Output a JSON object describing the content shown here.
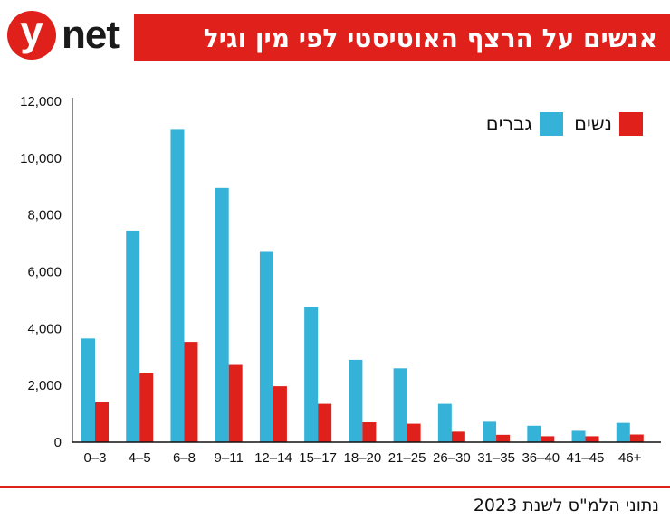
{
  "brand": {
    "logo_letter": "y",
    "logo_text": "net",
    "accent_color": "#e0201b"
  },
  "header": {
    "title": "אנשים על הרצף האוטיסטי לפי מין וגיל"
  },
  "footer": {
    "source": "נתוני הלמ\"ס לשנת 2023"
  },
  "chart_data": {
    "type": "bar",
    "title": "אנשים על הרצף האוטיסטי לפי מין וגיל",
    "xlabel": "",
    "ylabel": "",
    "categories": [
      "0–3",
      "4–5",
      "6–8",
      "9–11",
      "12–14",
      "15–17",
      "18–20",
      "21–25",
      "26–30",
      "31–35",
      "36–40",
      "41–45",
      "46+"
    ],
    "series": [
      {
        "name": "גברים",
        "color": "#35b2d8",
        "values": [
          3650,
          7450,
          11000,
          8950,
          6700,
          4750,
          2900,
          2600,
          1350,
          720,
          580,
          400,
          680
        ]
      },
      {
        "name": "נשים",
        "color": "#e0201b",
        "values": [
          1400,
          2450,
          3530,
          2720,
          1970,
          1350,
          700,
          650,
          370,
          260,
          210,
          210,
          270
        ]
      }
    ],
    "ylim": [
      0,
      12000
    ],
    "yticks": [
      0,
      2000,
      4000,
      6000,
      8000,
      10000,
      12000
    ],
    "ytick_labels": [
      "0",
      "2,000",
      "4,000",
      "6,000",
      "8,000",
      "10,000",
      "12,000"
    ],
    "legend_position": "top-right",
    "grid": false
  }
}
